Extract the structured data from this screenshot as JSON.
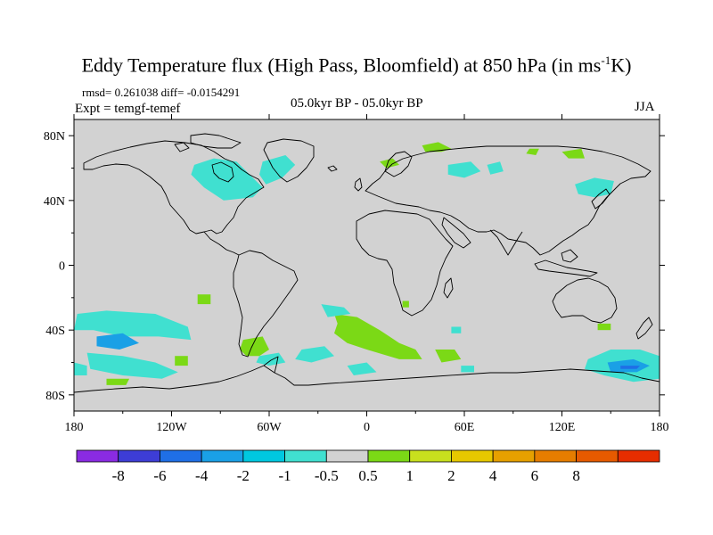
{
  "title": {
    "main": "Eddy Temperature flux (High Pass, Bloomfield) at 850 hPa (in ms",
    "superscript": "-1",
    "tail": "K)"
  },
  "stats_text": "rmsd= 0.261038 diff= -0.0154291",
  "experiment": "Expt = temgf-temef",
  "period": "05.0kyr BP - 05.0kyr BP",
  "season": "JJA",
  "colors": {
    "ocean_land_neutral": "#d2d2d2",
    "coast": "#000000"
  },
  "chart_data": {
    "type": "heatmap",
    "projection": "cylindrical-equidistant",
    "variable": "Eddy Temperature flux (High Pass, Bloomfield) at 850 hPa",
    "units": "ms-1K",
    "lon_range": [
      -180,
      180
    ],
    "lat_range": [
      -90,
      90
    ],
    "x_ticks": [
      {
        "value": -180,
        "label": "180"
      },
      {
        "value": -120,
        "label": "120W"
      },
      {
        "value": -60,
        "label": "60W"
      },
      {
        "value": 0,
        "label": "0"
      },
      {
        "value": 60,
        "label": "60E"
      },
      {
        "value": 120,
        "label": "120E"
      },
      {
        "value": 180,
        "label": "180"
      }
    ],
    "y_ticks": [
      {
        "value": 80,
        "label": "80N"
      },
      {
        "value": 40,
        "label": "40N"
      },
      {
        "value": 0,
        "label": "0"
      },
      {
        "value": -40,
        "label": "40S"
      },
      {
        "value": -80,
        "label": "80S"
      }
    ],
    "colorbar": {
      "colors": [
        "#8a2be2",
        "#3d3dd6",
        "#1f6fe6",
        "#1aa0e6",
        "#00c8e0",
        "#40e0d0",
        "#d2d2d2",
        "#7bd916",
        "#c8e01e",
        "#e6c800",
        "#e6a000",
        "#e67d00",
        "#e65a00",
        "#e62d00"
      ],
      "labels": [
        "-8",
        "-6",
        "-4",
        "-2",
        "-1",
        "-0.5",
        "0.5",
        "1",
        "2",
        "4",
        "6",
        "8"
      ]
    },
    "regions": [
      {
        "name": "n-atlantic-west",
        "level": "-1",
        "color": "#40e0d0",
        "pts": [
          [
            -106,
            62
          ],
          [
            -94,
            66
          ],
          [
            -80,
            64
          ],
          [
            -72,
            56
          ],
          [
            -64,
            48
          ],
          [
            -70,
            42
          ],
          [
            -88,
            40
          ],
          [
            -100,
            48
          ],
          [
            -108,
            56
          ]
        ]
      },
      {
        "name": "n-atlantic-east",
        "level": "-1",
        "color": "#40e0d0",
        "pts": [
          [
            -64,
            64
          ],
          [
            -50,
            68
          ],
          [
            -44,
            62
          ],
          [
            -52,
            54
          ],
          [
            -62,
            50
          ],
          [
            -66,
            56
          ]
        ]
      },
      {
        "name": "barents",
        "level": "1",
        "color": "#7bd916",
        "pts": [
          [
            34,
            74
          ],
          [
            44,
            76
          ],
          [
            52,
            72
          ],
          [
            46,
            70
          ],
          [
            36,
            70
          ]
        ]
      },
      {
        "name": "baltic-small",
        "level": "1",
        "color": "#7bd916",
        "pts": [
          [
            8,
            64
          ],
          [
            16,
            66
          ],
          [
            20,
            62
          ],
          [
            12,
            60
          ]
        ]
      },
      {
        "name": "siberia-arctic",
        "level": "-1",
        "color": "#40e0d0",
        "pts": [
          [
            50,
            62
          ],
          [
            64,
            64
          ],
          [
            70,
            58
          ],
          [
            60,
            54
          ],
          [
            50,
            56
          ]
        ]
      },
      {
        "name": "kara",
        "level": "-1",
        "color": "#40e0d0",
        "pts": [
          [
            74,
            62
          ],
          [
            82,
            64
          ],
          [
            84,
            58
          ],
          [
            76,
            56
          ]
        ]
      },
      {
        "name": "ne-siberia",
        "level": "1",
        "color": "#7bd916",
        "pts": [
          [
            120,
            70
          ],
          [
            132,
            72
          ],
          [
            134,
            66
          ],
          [
            124,
            66
          ]
        ]
      },
      {
        "name": "laptev-small",
        "level": "1",
        "color": "#7bd916",
        "pts": [
          [
            100,
            72
          ],
          [
            106,
            72
          ],
          [
            104,
            68
          ],
          [
            98,
            69
          ]
        ]
      },
      {
        "name": "nw-pacific",
        "level": "-1",
        "color": "#40e0d0",
        "pts": [
          [
            128,
            50
          ],
          [
            140,
            54
          ],
          [
            152,
            52
          ],
          [
            150,
            44
          ],
          [
            140,
            42
          ],
          [
            130,
            44
          ]
        ]
      },
      {
        "name": "s-pacific-west",
        "level": "-1",
        "color": "#40e0d0",
        "pts": [
          [
            -178,
            -30
          ],
          [
            -160,
            -28
          ],
          [
            -130,
            -30
          ],
          [
            -110,
            -38
          ],
          [
            -108,
            -46
          ],
          [
            -128,
            -44
          ],
          [
            -150,
            -44
          ],
          [
            -168,
            -40
          ],
          [
            -180,
            -40
          ]
        ]
      },
      {
        "name": "s-pacific-core",
        "level": "-2",
        "color": "#1aa0e6",
        "pts": [
          [
            -166,
            -44
          ],
          [
            -150,
            -42
          ],
          [
            -140,
            -48
          ],
          [
            -152,
            -52
          ],
          [
            -166,
            -50
          ]
        ]
      },
      {
        "name": "s-pacific-band",
        "level": "-1",
        "color": "#40e0d0",
        "pts": [
          [
            -172,
            -54
          ],
          [
            -150,
            -56
          ],
          [
            -130,
            -60
          ],
          [
            -116,
            -66
          ],
          [
            -126,
            -70
          ],
          [
            -150,
            -68
          ],
          [
            -170,
            -64
          ]
        ]
      },
      {
        "name": "far-west-edge",
        "level": "-1",
        "color": "#40e0d0",
        "pts": [
          [
            -180,
            -60
          ],
          [
            -172,
            -62
          ],
          [
            -172,
            -68
          ],
          [
            -180,
            -68
          ]
        ]
      },
      {
        "name": "s-pacific-green",
        "level": "1",
        "color": "#7bd916",
        "pts": [
          [
            -160,
            -70
          ],
          [
            -146,
            -70
          ],
          [
            -148,
            -74
          ],
          [
            -160,
            -74
          ]
        ]
      },
      {
        "name": "s-pacific-green2",
        "level": "1",
        "color": "#7bd916",
        "pts": [
          [
            -118,
            -56
          ],
          [
            -110,
            -56
          ],
          [
            -110,
            -62
          ],
          [
            -118,
            -62
          ]
        ]
      },
      {
        "name": "patagonia",
        "level": "1",
        "color": "#7bd916",
        "pts": [
          [
            -76,
            -46
          ],
          [
            -64,
            -44
          ],
          [
            -60,
            -52
          ],
          [
            -66,
            -56
          ],
          [
            -74,
            -56
          ],
          [
            -78,
            -52
          ]
        ]
      },
      {
        "name": "s-america-patch",
        "level": "-1",
        "color": "#40e0d0",
        "pts": [
          [
            -66,
            -56
          ],
          [
            -54,
            -54
          ],
          [
            -50,
            -60
          ],
          [
            -60,
            -62
          ],
          [
            -68,
            -60
          ]
        ]
      },
      {
        "name": "se-pacific-small",
        "level": "1",
        "color": "#7bd916",
        "pts": [
          [
            -104,
            -18
          ],
          [
            -96,
            -18
          ],
          [
            -96,
            -24
          ],
          [
            -104,
            -24
          ]
        ]
      },
      {
        "name": "s-atlantic-green",
        "level": "1",
        "color": "#7bd916",
        "pts": [
          [
            -20,
            -30
          ],
          [
            -6,
            -32
          ],
          [
            8,
            -40
          ],
          [
            20,
            -48
          ],
          [
            30,
            -52
          ],
          [
            34,
            -58
          ],
          [
            20,
            -58
          ],
          [
            0,
            -52
          ],
          [
            -12,
            -48
          ],
          [
            -20,
            -42
          ],
          [
            -18,
            -36
          ]
        ]
      },
      {
        "name": "s-atlantic-cyan",
        "level": "-1",
        "color": "#40e0d0",
        "pts": [
          [
            -28,
            -24
          ],
          [
            -14,
            -26
          ],
          [
            -10,
            -30
          ],
          [
            -24,
            -32
          ]
        ]
      },
      {
        "name": "s-atlantic-cyan2",
        "level": "-1",
        "color": "#40e0d0",
        "pts": [
          [
            -40,
            -52
          ],
          [
            -26,
            -50
          ],
          [
            -20,
            -56
          ],
          [
            -34,
            -60
          ],
          [
            -44,
            -58
          ]
        ]
      },
      {
        "name": "s-atlantic-cyan3",
        "level": "-1",
        "color": "#40e0d0",
        "pts": [
          [
            -12,
            -62
          ],
          [
            0,
            -60
          ],
          [
            6,
            -66
          ],
          [
            -8,
            -68
          ]
        ]
      },
      {
        "name": "s-indian-green",
        "level": "1",
        "color": "#7bd916",
        "pts": [
          [
            42,
            -52
          ],
          [
            54,
            -52
          ],
          [
            58,
            -58
          ],
          [
            46,
            -60
          ]
        ]
      },
      {
        "name": "s-indian-cyan",
        "level": "-1",
        "color": "#40e0d0",
        "pts": [
          [
            58,
            -62
          ],
          [
            66,
            -62
          ],
          [
            66,
            -66
          ],
          [
            58,
            -66
          ]
        ]
      },
      {
        "name": "s-indian-small",
        "level": "-1",
        "color": "#40e0d0",
        "pts": [
          [
            52,
            -38
          ],
          [
            58,
            -38
          ],
          [
            58,
            -42
          ],
          [
            52,
            -42
          ]
        ]
      },
      {
        "name": "indian-small-green",
        "level": "1",
        "color": "#7bd916",
        "pts": [
          [
            22,
            -22
          ],
          [
            26,
            -22
          ],
          [
            26,
            -26
          ],
          [
            22,
            -26
          ]
        ]
      },
      {
        "name": "aus-east-green",
        "level": "1",
        "color": "#7bd916",
        "pts": [
          [
            142,
            -36
          ],
          [
            150,
            -36
          ],
          [
            150,
            -40
          ],
          [
            142,
            -40
          ]
        ]
      },
      {
        "name": "sw-pacific-cyan",
        "level": "-1",
        "color": "#40e0d0",
        "pts": [
          [
            136,
            -58
          ],
          [
            150,
            -52
          ],
          [
            168,
            -52
          ],
          [
            180,
            -56
          ],
          [
            180,
            -70
          ],
          [
            164,
            -72
          ],
          [
            146,
            -68
          ],
          [
            134,
            -64
          ]
        ]
      },
      {
        "name": "sw-pacific-core",
        "level": "-2",
        "color": "#1aa0e6",
        "pts": [
          [
            148,
            -60
          ],
          [
            164,
            -58
          ],
          [
            174,
            -62
          ],
          [
            166,
            -66
          ],
          [
            150,
            -66
          ]
        ]
      },
      {
        "name": "sw-pacific-deep",
        "level": "-4",
        "color": "#1f6fe6",
        "pts": [
          [
            156,
            -62
          ],
          [
            168,
            -62
          ],
          [
            166,
            -64
          ],
          [
            156,
            -64
          ]
        ]
      }
    ]
  }
}
